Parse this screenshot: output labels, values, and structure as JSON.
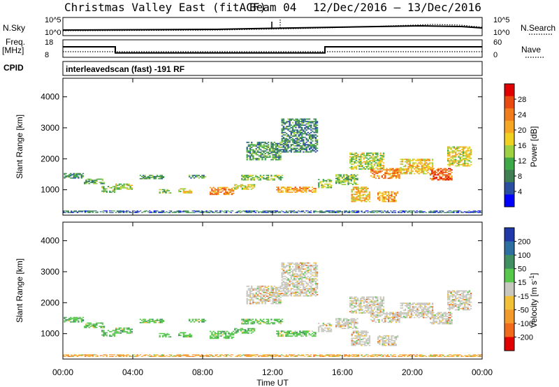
{
  "chart_data": {
    "type": "heatmap",
    "title": "Christmas Valley East (fitACF)",
    "beam": "Beam 04",
    "date_range": "12/Dec/2016 – 13/Dec/2016",
    "time_axis": {
      "label": "Time UT",
      "ticks": [
        "00:00",
        "04:00",
        "08:00",
        "12:00",
        "16:00",
        "20:00",
        "00:00"
      ],
      "range_hours": [
        0,
        24
      ]
    },
    "nsky_panel": {
      "left_label": "N.Sky",
      "right_label": "N.Search",
      "left_ticks": [
        "10^5",
        "10^0"
      ],
      "right_ticks": [
        "10^5",
        "10^0"
      ]
    },
    "freq_panel": {
      "left_label_1": "Freq.",
      "left_label_2": "[MHz]",
      "right_label": "Nave",
      "left_ticks": [
        "18",
        "8"
      ],
      "right_ticks": [
        "60",
        "0"
      ],
      "freq_steps": [
        [
          0,
          14.0
        ],
        [
          3.0,
          10.5
        ],
        [
          15.0,
          14.0
        ],
        [
          24,
          14.0
        ]
      ],
      "nave_level": 11.2
    },
    "cpid": {
      "label": "CPID",
      "text": "interleavedscan (fast) -191 RF"
    },
    "power_panel": {
      "ylabel": "Slant Range [km]",
      "ylim": [
        180,
        4600
      ],
      "yticks": [
        "1000",
        "2000",
        "3000",
        "4000"
      ],
      "colorbar_label": "Power [dB]",
      "colorbar_ticks": [
        "4",
        "8",
        "12",
        "16",
        "20",
        "24",
        "28"
      ],
      "colors": [
        "#0000ff",
        "#2a4fa0",
        "#3f7f52",
        "#3fa94a",
        "#9dd043",
        "#f0d020",
        "#f5a623",
        "#f07c1c",
        "#e84a12",
        "#e00000"
      ]
    },
    "velocity_panel": {
      "ylabel": "Slant Range [km]",
      "ylim": [
        180,
        4600
      ],
      "yticks": [
        "1000",
        "2000",
        "3000",
        "4000"
      ],
      "colorbar_label": "Velocity [m s^-1]",
      "colorbar_ticks": [
        "200",
        "100",
        "50",
        "15",
        "-15",
        "-50",
        "-100",
        "-200"
      ],
      "colors": [
        "#1f3aa8",
        "#2d6fa0",
        "#3f8f60",
        "#57c84b",
        "#c8c8c0",
        "#f2c13a",
        "#f39a2d",
        "#ef6a1c",
        "#e00000"
      ]
    },
    "echo_regions": [
      {
        "t": [
          0.05,
          1.2
        ],
        "r": [
          1360,
          1540
        ],
        "p": 8,
        "v": "vpos"
      },
      {
        "t": [
          1.2,
          2.4
        ],
        "r": [
          1180,
          1360
        ],
        "p": 10,
        "v": "vpos"
      },
      {
        "t": [
          2.2,
          3.0
        ],
        "r": [
          900,
          1120
        ],
        "p": 12,
        "v": "vpos"
      },
      {
        "t": [
          3.0,
          4.0
        ],
        "r": [
          1000,
          1200
        ],
        "p": 14,
        "v": "vpos"
      },
      {
        "t": [
          4.3,
          5.8
        ],
        "r": [
          1340,
          1480
        ],
        "p": 9,
        "v": "vpos"
      },
      {
        "t": [
          5.5,
          6.2
        ],
        "r": [
          880,
          1020
        ],
        "p": 13,
        "v": "vpos"
      },
      {
        "t": [
          6.6,
          7.4
        ],
        "r": [
          880,
          1050
        ],
        "p": 15,
        "v": "vpos"
      },
      {
        "t": [
          7.2,
          8.2
        ],
        "r": [
          1360,
          1480
        ],
        "p": 10,
        "v": "vpos"
      },
      {
        "t": [
          8.4,
          9.8
        ],
        "r": [
          830,
          1090
        ],
        "p": 22,
        "v": "vpos"
      },
      {
        "t": [
          9.8,
          11.0
        ],
        "r": [
          1000,
          1180
        ],
        "p": 16,
        "v": "vpos"
      },
      {
        "t": [
          10.2,
          12.6
        ],
        "r": [
          1300,
          1480
        ],
        "p": 12,
        "v": "vpos"
      },
      {
        "t": [
          12.2,
          14.5
        ],
        "r": [
          900,
          1100
        ],
        "p": 20,
        "v": "vpos"
      },
      {
        "t": [
          10.5,
          12.5
        ],
        "r": [
          1950,
          2550
        ],
        "p": 9,
        "v": "vgray"
      },
      {
        "t": [
          12.5,
          14.6
        ],
        "r": [
          2200,
          3300
        ],
        "p": 8,
        "v": "vgray"
      },
      {
        "t": [
          14.6,
          15.4
        ],
        "r": [
          1050,
          1350
        ],
        "p": 13,
        "v": "vgray"
      },
      {
        "t": [
          15.6,
          16.9
        ],
        "r": [
          1150,
          1500
        ],
        "p": 12,
        "v": "vgray"
      },
      {
        "t": [
          16.5,
          17.6
        ],
        "r": [
          600,
          1100
        ],
        "p": 18,
        "v": "vgray"
      },
      {
        "t": [
          16.4,
          18.4
        ],
        "r": [
          1650,
          2200
        ],
        "p": 14,
        "v": "vgray"
      },
      {
        "t": [
          17.6,
          19.3
        ],
        "r": [
          1350,
          1700
        ],
        "p": 22,
        "v": "vgray"
      },
      {
        "t": [
          18.0,
          19.2
        ],
        "r": [
          600,
          950
        ],
        "p": 20,
        "v": "vgray"
      },
      {
        "t": [
          19.3,
          21.2
        ],
        "r": [
          1500,
          2000
        ],
        "p": 18,
        "v": "vgray"
      },
      {
        "t": [
          21.0,
          22.3
        ],
        "r": [
          1300,
          1700
        ],
        "p": 24,
        "v": "vgray"
      },
      {
        "t": [
          22.0,
          23.4
        ],
        "r": [
          1750,
          2400
        ],
        "p": 16,
        "v": "vgray"
      },
      {
        "t": [
          0.0,
          24.0
        ],
        "r": [
          250,
          330
        ],
        "p": 6,
        "v": "vneg"
      }
    ]
  }
}
